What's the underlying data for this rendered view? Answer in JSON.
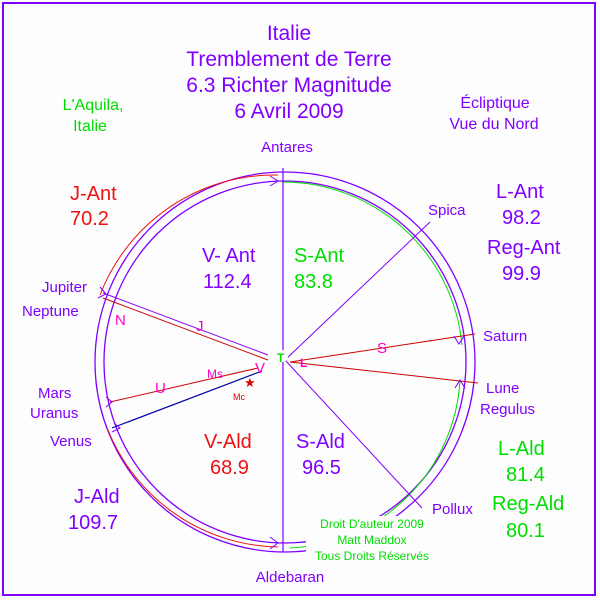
{
  "title": {
    "line1": "Italie",
    "line2": "Tremblement de Terre",
    "line3": "6.3 Richter Magnitude",
    "line4": "6 Avril 2009"
  },
  "location": {
    "line1": "L'Aquila,",
    "line2": "Italie"
  },
  "view": {
    "line1": "Écliptique",
    "line2": "Vue du Nord"
  },
  "stars": {
    "antares": "Antares",
    "aldebaran": "Aldebaran",
    "spica": "Spica",
    "pollux": "Pollux",
    "regulus": "Regulus"
  },
  "planets": {
    "jupiter": "Jupiter",
    "neptune": "Neptune",
    "mars": "Mars",
    "uranus": "Uranus",
    "venus": "Venus",
    "saturn": "Saturn",
    "lune": "Lune"
  },
  "markers": {
    "n": "N",
    "j": "J",
    "ms": "Ms",
    "v": "V",
    "t": "T",
    "l": "L",
    "s": "S",
    "u": "U",
    "mc": "Mc"
  },
  "values": {
    "j_ant_label": "J-Ant",
    "j_ant": "70.2",
    "v_ant_label": "V- Ant",
    "v_ant": "112.4",
    "s_ant_label": "S-Ant",
    "s_ant": "83.8",
    "l_ant_label": "L-Ant",
    "l_ant": "98.2",
    "reg_ant_label": "Reg-Ant",
    "reg_ant": "99.9",
    "v_ald_label": "V-Ald",
    "v_ald": "68.9",
    "s_ald_label": "S-Ald",
    "s_ald": "96.5",
    "j_ald_label": "J-Ald",
    "j_ald": "109.7",
    "l_ald_label": "L-Ald",
    "l_ald": "81.4",
    "reg_ald_label": "Reg-Ald",
    "reg_ald": "80.1"
  },
  "copyright": {
    "line1": "Droit D'auteur 2009",
    "line2": "Matt Maddox",
    "line3": "Tous Droits Réservés"
  },
  "colors": {
    "purple": "#8000ff",
    "green": "#00dd00",
    "red": "#ee1111",
    "magenta": "#ff00cc",
    "navy": "#0000aa",
    "darkred": "#cc0000"
  }
}
